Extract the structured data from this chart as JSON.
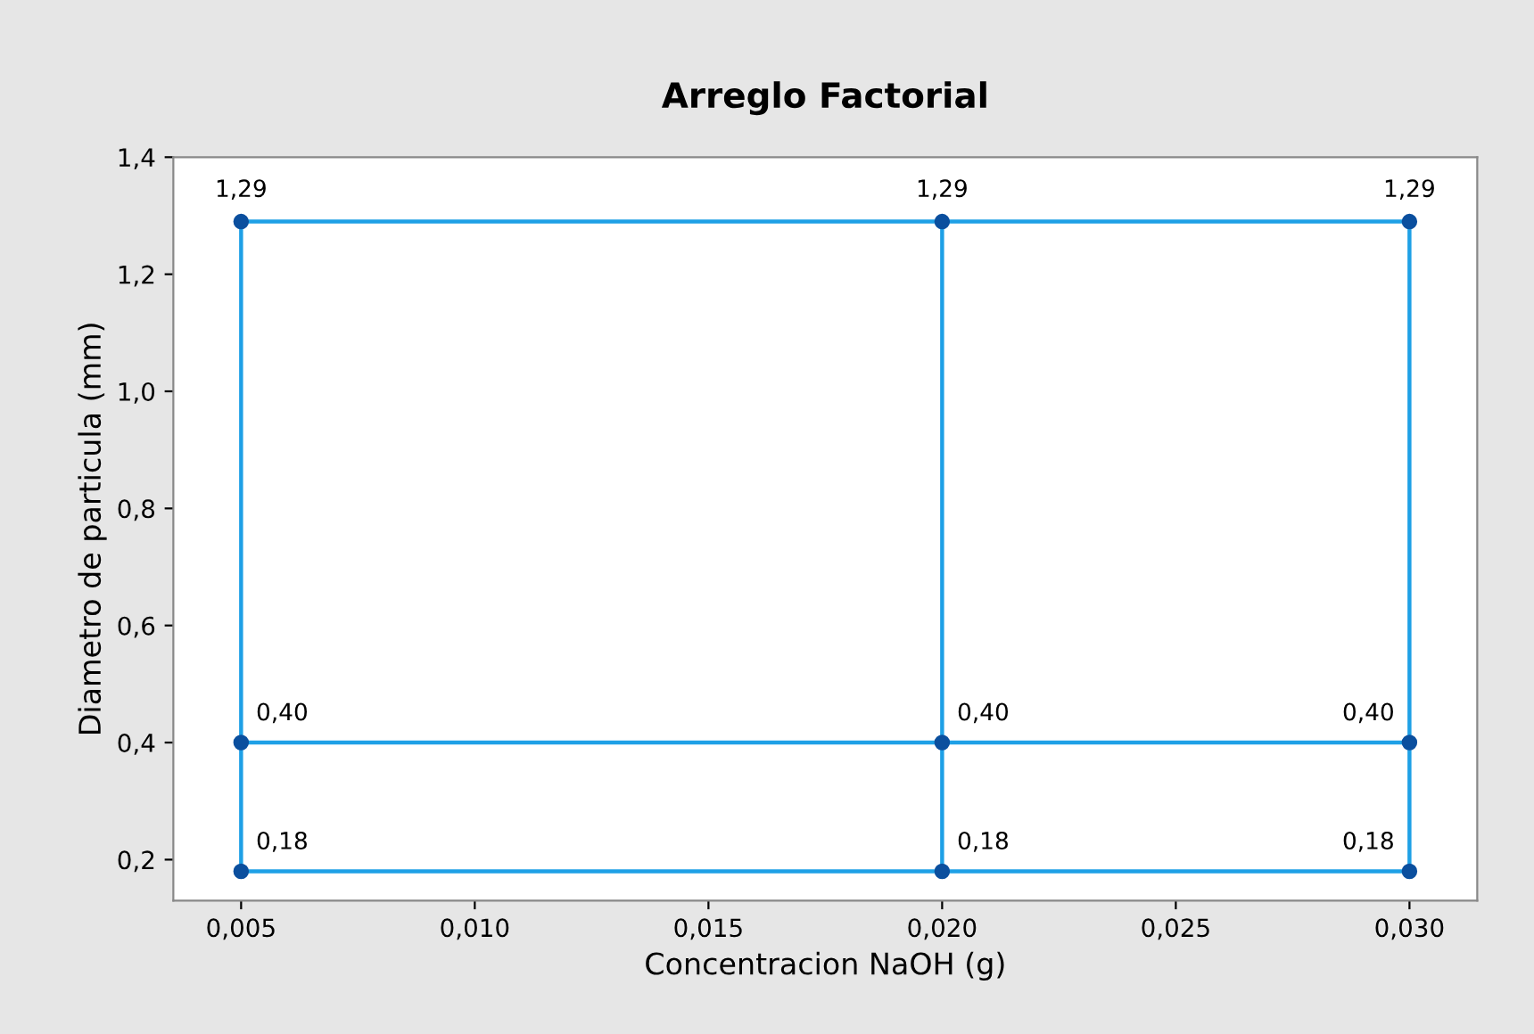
{
  "chart_data": {
    "type": "line",
    "title": "Arreglo Factorial",
    "xlabel": "Concentracion NaOH (g)",
    "ylabel": "Diametro de particula (mm)",
    "xlim": [
      0.00355,
      0.03145
    ],
    "ylim": [
      0.13,
      1.4
    ],
    "xticks": [
      {
        "value": 0.005,
        "label": "0,005"
      },
      {
        "value": 0.01,
        "label": "0,010"
      },
      {
        "value": 0.015,
        "label": "0,015"
      },
      {
        "value": 0.02,
        "label": "0,020"
      },
      {
        "value": 0.025,
        "label": "0,025"
      },
      {
        "value": 0.03,
        "label": "0,030"
      }
    ],
    "yticks": [
      {
        "value": 0.2,
        "label": "0,2"
      },
      {
        "value": 0.4,
        "label": "0,4"
      },
      {
        "value": 0.6,
        "label": "0,6"
      },
      {
        "value": 0.8,
        "label": "0,8"
      },
      {
        "value": 1.0,
        "label": "1,0"
      },
      {
        "value": 1.2,
        "label": "1,2"
      },
      {
        "value": 1.4,
        "label": "1,4"
      }
    ],
    "grid": false,
    "marker": "none",
    "series": [
      {
        "color": "#1ea0e6",
        "x": [
          0.005,
          0.02,
          0.03
        ],
        "values": [
          1.29,
          1.29,
          1.29
        ]
      },
      {
        "color": "#1ea0e6",
        "x": [
          0.005,
          0.02,
          0.03
        ],
        "values": [
          0.4,
          0.4,
          0.4
        ]
      },
      {
        "color": "#1ea0e6",
        "x": [
          0.005,
          0.02,
          0.03
        ],
        "values": [
          0.18,
          0.18,
          0.18
        ]
      },
      {
        "color": "#1ea0e6",
        "x": [
          0.005,
          0.005,
          0.005
        ],
        "values": [
          0.18,
          0.4,
          1.29
        ]
      },
      {
        "color": "#1ea0e6",
        "x": [
          0.02,
          0.02,
          0.02
        ],
        "values": [
          0.18,
          0.4,
          1.29
        ]
      },
      {
        "color": "#1ea0e6",
        "x": [
          0.03,
          0.03,
          0.03
        ],
        "values": [
          0.18,
          0.4,
          1.29
        ]
      },
      {
        "type": "scatter",
        "marker": "circle",
        "color": "#0b4f9e",
        "x": [
          0.005,
          0.02,
          0.03,
          0.005,
          0.02,
          0.03,
          0.005,
          0.02,
          0.03
        ],
        "values": [
          1.29,
          1.29,
          1.29,
          0.4,
          0.4,
          0.4,
          0.18,
          0.18,
          0.18
        ],
        "value_labels": [
          "1,29",
          "1,29",
          "1,29",
          "0,40",
          "0,40",
          "0,40",
          "0,18",
          "0,18",
          "0,18"
        ]
      }
    ]
  }
}
